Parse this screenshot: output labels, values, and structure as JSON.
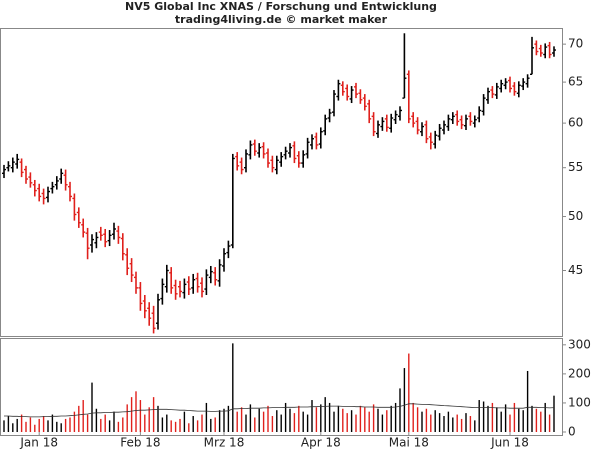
{
  "chart_data": {
    "type": "ohlc",
    "title": "NV5 Global Inc XNAS / Forschung und Entwicklung",
    "subtitle": "trading4living.de © market maker",
    "log_scale": true,
    "ylim": [
      39.6,
      72.1
    ],
    "yticks": [
      45,
      50,
      55,
      60,
      65,
      70
    ],
    "up_color": "#000000",
    "down_color": "#e0201c",
    "categories": [
      null,
      null,
      null,
      null,
      null,
      null,
      null,
      null,
      "Jan 18",
      null,
      null,
      null,
      null,
      null,
      null,
      null,
      null,
      null,
      null,
      null,
      null,
      null,
      null,
      null,
      null,
      null,
      null,
      null,
      null,
      null,
      null,
      "Feb 18",
      null,
      null,
      null,
      null,
      null,
      null,
      null,
      null,
      null,
      null,
      null,
      null,
      null,
      null,
      null,
      null,
      null,
      null,
      "Mrz 18",
      null,
      null,
      null,
      null,
      null,
      null,
      null,
      null,
      null,
      null,
      null,
      null,
      null,
      null,
      null,
      null,
      null,
      null,
      null,
      null,
      null,
      "Apr 18",
      null,
      null,
      null,
      null,
      null,
      null,
      null,
      null,
      null,
      null,
      null,
      null,
      null,
      null,
      null,
      null,
      null,
      null,
      null,
      "Mai 18",
      null,
      null,
      null,
      null,
      null,
      null,
      null,
      null,
      null,
      null,
      null,
      null,
      null,
      null,
      null,
      null,
      null,
      null,
      null,
      null,
      null,
      null,
      "Jun 18",
      null,
      null,
      null,
      null,
      null,
      null,
      null,
      null,
      null,
      null
    ],
    "open": [
      54.4,
      55.0,
      55.0,
      55.4,
      55.6,
      54.8,
      54.0,
      53.2,
      52.8,
      52.3,
      51.9,
      52.8,
      53.2,
      53.8,
      54.2,
      53.0,
      51.8,
      50.4,
      49.2,
      48.4,
      47.3,
      47.5,
      48.5,
      48.3,
      47.7,
      48.3,
      48.6,
      47.9,
      46.4,
      45.6,
      44.4,
      43.5,
      42.4,
      41.8,
      41.4,
      40.6,
      42.6,
      43.6,
      44.8,
      43.7,
      43.6,
      43.1,
      44.0,
      43.5,
      44.3,
      43.9,
      43.4,
      44.4,
      44.8,
      44.1,
      45.4,
      46.6,
      47.3,
      56.2,
      55.6,
      55.0,
      56.4,
      57.6,
      56.6,
      57.3,
      56.6,
      55.8,
      54.8,
      55.6,
      56.4,
      56.6,
      57.4,
      56.3,
      55.5,
      56.5,
      57.5,
      58.4,
      57.6,
      59.1,
      60.6,
      61.3,
      63.2,
      64.6,
      64.2,
      62.9,
      64.4,
      63.6,
      63.0,
      62.3,
      60.8,
      58.8,
      59.6,
      60.5,
      59.4,
      60.4,
      60.8,
      63.0,
      66.0,
      60.8,
      60.2,
      59.0,
      59.8,
      58.4,
      57.6,
      58.5,
      59.2,
      59.6,
      60.4,
      61.0,
      60.4,
      59.7,
      60.8,
      60.0,
      60.6,
      61.4,
      62.8,
      64.0,
      63.4,
      64.2,
      64.6,
      65.2,
      64.5,
      63.6,
      64.5,
      64.8,
      66.0,
      70.0,
      69.4,
      68.6,
      69.8,
      68.8
    ],
    "high": [
      55.3,
      55.7,
      56.1,
      56.5,
      56.0,
      55.2,
      54.5,
      53.7,
      53.3,
      52.8,
      53.0,
      53.5,
      54.1,
      54.9,
      54.8,
      53.5,
      52.3,
      50.9,
      49.8,
      48.9,
      48.3,
      48.5,
      49.0,
      48.8,
      48.7,
      49.4,
      49.1,
      48.4,
      47.0,
      46.1,
      44.9,
      44.0,
      42.9,
      42.3,
      42.0,
      43.0,
      44.3,
      45.5,
      45.3,
      44.2,
      44.1,
      44.3,
      44.5,
      44.7,
      44.8,
      44.4,
      45.1,
      45.4,
      45.3,
      46.0,
      47.0,
      47.7,
      56.5,
      56.7,
      56.1,
      57.0,
      58.0,
      58.1,
      57.7,
      57.8,
      57.1,
      56.3,
      56.3,
      56.7,
      57.3,
      57.7,
      57.9,
      56.8,
      56.9,
      58.3,
      58.7,
      58.9,
      59.5,
      61.0,
      61.7,
      64.0,
      65.3,
      65.1,
      64.7,
      64.5,
      64.9,
      64.1,
      63.5,
      62.8,
      61.3,
      60.3,
      60.7,
      61.0,
      61.1,
      61.5,
      62.0,
      71.5,
      66.5,
      61.3,
      60.7,
      60.1,
      60.3,
      58.9,
      59.1,
      59.9,
      60.3,
      61.0,
      61.3,
      61.5,
      60.9,
      61.0,
      61.3,
      60.9,
      62.0,
      63.5,
      64.3,
      64.5,
      64.9,
      65.3,
      65.5,
      65.7,
      65.0,
      65.1,
      65.5,
      66.0,
      71.0,
      70.5,
      69.9,
      70.1,
      70.3,
      69.7
    ],
    "low": [
      53.9,
      54.6,
      54.5,
      54.9,
      54.0,
      53.3,
      52.9,
      52.0,
      51.5,
      51.2,
      51.4,
      52.3,
      52.7,
      53.3,
      52.6,
      51.5,
      49.6,
      48.9,
      48.0,
      46.0,
      46.6,
      47.0,
      47.7,
      47.1,
      47.2,
      47.8,
      47.4,
      45.9,
      44.6,
      44.0,
      43.0,
      41.6,
      41.0,
      40.4,
      39.8,
      40.1,
      42.1,
      43.1,
      43.0,
      42.5,
      42.7,
      42.6,
      42.9,
      43.0,
      43.1,
      42.7,
      42.9,
      43.9,
      43.7,
      43.6,
      44.9,
      46.1,
      47.0,
      54.7,
      54.3,
      54.5,
      55.9,
      56.3,
      56.1,
      56.0,
      55.0,
      54.5,
      54.3,
      55.1,
      55.9,
      56.1,
      55.5,
      55.0,
      55.0,
      56.0,
      57.0,
      57.0,
      57.1,
      58.6,
      60.1,
      60.8,
      62.7,
      63.3,
      62.7,
      62.4,
      63.0,
      62.3,
      61.5,
      60.0,
      58.5,
      58.3,
      59.1,
      59.0,
      58.9,
      59.9,
      60.3,
      63.0,
      60.0,
      59.5,
      58.7,
      58.5,
      57.7,
      57.0,
      57.1,
      58.0,
      58.7,
      59.1,
      59.9,
      59.7,
      59.3,
      59.2,
      59.7,
      59.5,
      60.1,
      60.9,
      62.3,
      63.0,
      62.9,
      63.7,
      64.1,
      63.7,
      63.3,
      63.1,
      64.0,
      64.3,
      66.0,
      68.5,
      68.3,
      68.1,
      68.1,
      68.3
    ],
    "close": [
      54.8,
      55.2,
      55.6,
      55.9,
      54.5,
      53.8,
      53.4,
      52.6,
      52.0,
      51.8,
      52.5,
      53.0,
      53.6,
      54.4,
      53.2,
      52.0,
      50.2,
      49.4,
      48.5,
      47.0,
      47.8,
      48.0,
      48.2,
      47.6,
      48.2,
      48.8,
      48.0,
      46.5,
      45.2,
      44.6,
      43.5,
      42.2,
      41.6,
      41.0,
      40.2,
      42.5,
      43.8,
      45.0,
      43.5,
      43.0,
      43.2,
      43.8,
      43.4,
      44.2,
      43.6,
      43.2,
      44.6,
      44.9,
      44.2,
      45.5,
      46.5,
      47.2,
      56.0,
      55.2,
      54.8,
      56.5,
      57.5,
      56.8,
      57.2,
      56.5,
      55.5,
      55.0,
      55.8,
      56.2,
      56.8,
      57.2,
      56.0,
      55.5,
      56.4,
      57.8,
      58.2,
      57.5,
      59.0,
      60.5,
      61.2,
      63.5,
      64.8,
      63.8,
      63.2,
      64.0,
      63.5,
      62.8,
      62.0,
      60.5,
      59.0,
      59.8,
      60.2,
      59.5,
      60.6,
      61.0,
      61.5,
      65.5,
      60.5,
      60.0,
      59.2,
      59.6,
      58.2,
      57.8,
      58.6,
      59.4,
      59.8,
      60.5,
      60.8,
      60.2,
      59.8,
      60.5,
      60.2,
      60.4,
      61.5,
      63.0,
      63.8,
      63.5,
      64.4,
      64.8,
      65.0,
      64.2,
      63.8,
      64.6,
      65.0,
      65.5,
      69.5,
      69.0,
      68.8,
      69.6,
      68.6,
      69.2
    ],
    "volume": [
      40,
      55,
      30,
      45,
      60,
      35,
      50,
      25,
      45,
      55,
      40,
      60,
      35,
      30,
      45,
      50,
      70,
      90,
      110,
      60,
      170,
      80,
      45,
      60,
      40,
      70,
      35,
      50,
      95,
      120,
      140,
      110,
      60,
      85,
      120,
      90,
      50,
      60,
      40,
      35,
      45,
      70,
      30,
      55,
      40,
      60,
      100,
      45,
      50,
      75,
      80,
      90,
      305,
      70,
      85,
      60,
      95,
      50,
      80,
      70,
      90,
      55,
      75,
      60,
      100,
      80,
      65,
      90,
      70,
      60,
      110,
      85,
      95,
      120,
      100,
      70,
      90,
      80,
      65,
      75,
      60,
      90,
      85,
      70,
      95,
      80,
      60,
      75,
      90,
      100,
      150,
      220,
      270,
      100,
      85,
      70,
      80,
      60,
      75,
      65,
      55,
      70,
      50,
      60,
      45,
      65,
      55,
      40,
      110,
      105,
      90,
      100,
      85,
      70,
      95,
      60,
      100,
      80,
      75,
      210,
      90,
      80,
      70,
      100,
      60,
      125
    ],
    "volume_avg": [
      55,
      55,
      54,
      54,
      53,
      53,
      52,
      52,
      52,
      53,
      53,
      54,
      54,
      55,
      55,
      56,
      57,
      59,
      61,
      62,
      65,
      66,
      66,
      67,
      67,
      68,
      68,
      69,
      70,
      72,
      74,
      75,
      75,
      76,
      77,
      78,
      78,
      78,
      77,
      76,
      75,
      75,
      74,
      73,
      72,
      72,
      72,
      71,
      71,
      72,
      72,
      73,
      80,
      80,
      81,
      81,
      82,
      82,
      82,
      83,
      83,
      84,
      84,
      84,
      85,
      85,
      85,
      86,
      86,
      86,
      87,
      87,
      88,
      88,
      89,
      89,
      89,
      88,
      88,
      88,
      87,
      87,
      86,
      86,
      86,
      85,
      85,
      85,
      85,
      86,
      88,
      92,
      97,
      97,
      96,
      95,
      95,
      94,
      93,
      92,
      91,
      90,
      89,
      88,
      87,
      86,
      85,
      84,
      84,
      84,
      84,
      84,
      83,
      83,
      83,
      82,
      82,
      82,
      82,
      85,
      85,
      85,
      84,
      84,
      83,
      84
    ],
    "volume_avg_color": "#333333",
    "volume_ylim": [
      0,
      320
    ],
    "volume_yticks": [
      0,
      100,
      200,
      300
    ]
  }
}
